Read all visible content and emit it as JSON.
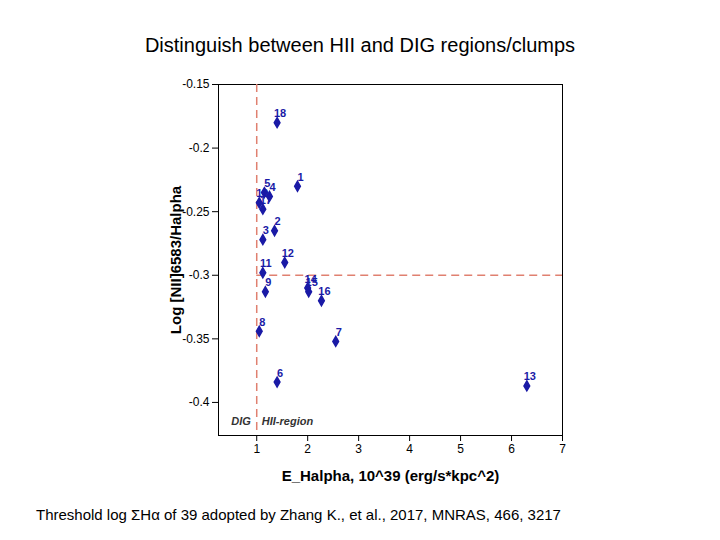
{
  "chart_data": {
    "type": "scatter",
    "title": "Distinguish between  HII and DIG regions/clumps",
    "caption": "Threshold log ΣHα of 39 adopted by Zhang K., et al., 2017, MNRAS, 466, 3217",
    "x_label": "E_Halpha, 10^39 (erg/s*kpc^2)",
    "y_label": "Log [NII]6583/Halpha",
    "point_labels": [
      "18",
      "1",
      "5",
      "4",
      "10",
      "17",
      "2",
      "3",
      "12",
      "11",
      "14",
      "15",
      "9",
      "16",
      "8",
      "7",
      "6",
      "13"
    ],
    "x": [
      1.4,
      1.8,
      1.15,
      1.25,
      1.05,
      1.12,
      1.35,
      1.12,
      1.55,
      1.12,
      2.0,
      2.02,
      1.17,
      2.27,
      1.05,
      2.55,
      1.4,
      6.3
    ],
    "values": [
      -0.18,
      -0.23,
      -0.235,
      -0.238,
      -0.243,
      -0.248,
      -0.265,
      -0.272,
      -0.29,
      -0.298,
      -0.31,
      -0.313,
      -0.313,
      -0.32,
      -0.344,
      -0.352,
      -0.384,
      -0.387
    ],
    "color": "#1a1aa6",
    "marker": "diamond",
    "xlim": [
      0.25,
      7
    ],
    "xticks": [
      1,
      2,
      3,
      4,
      5,
      6,
      7
    ],
    "ylim": [
      -0.426,
      -0.15
    ],
    "yticks": [
      -0.4,
      -0.35,
      -0.3,
      -0.25,
      -0.2,
      -0.15
    ],
    "grid": false,
    "reference_lines": {
      "x": 1,
      "y": -0.3,
      "color": "#e08070",
      "line_style": "dashed"
    },
    "annotations": [
      {
        "text": "DIG",
        "x": 0.5,
        "y": -0.415
      },
      {
        "text": "HII-region",
        "x": 1.1,
        "y": -0.415
      }
    ]
  }
}
